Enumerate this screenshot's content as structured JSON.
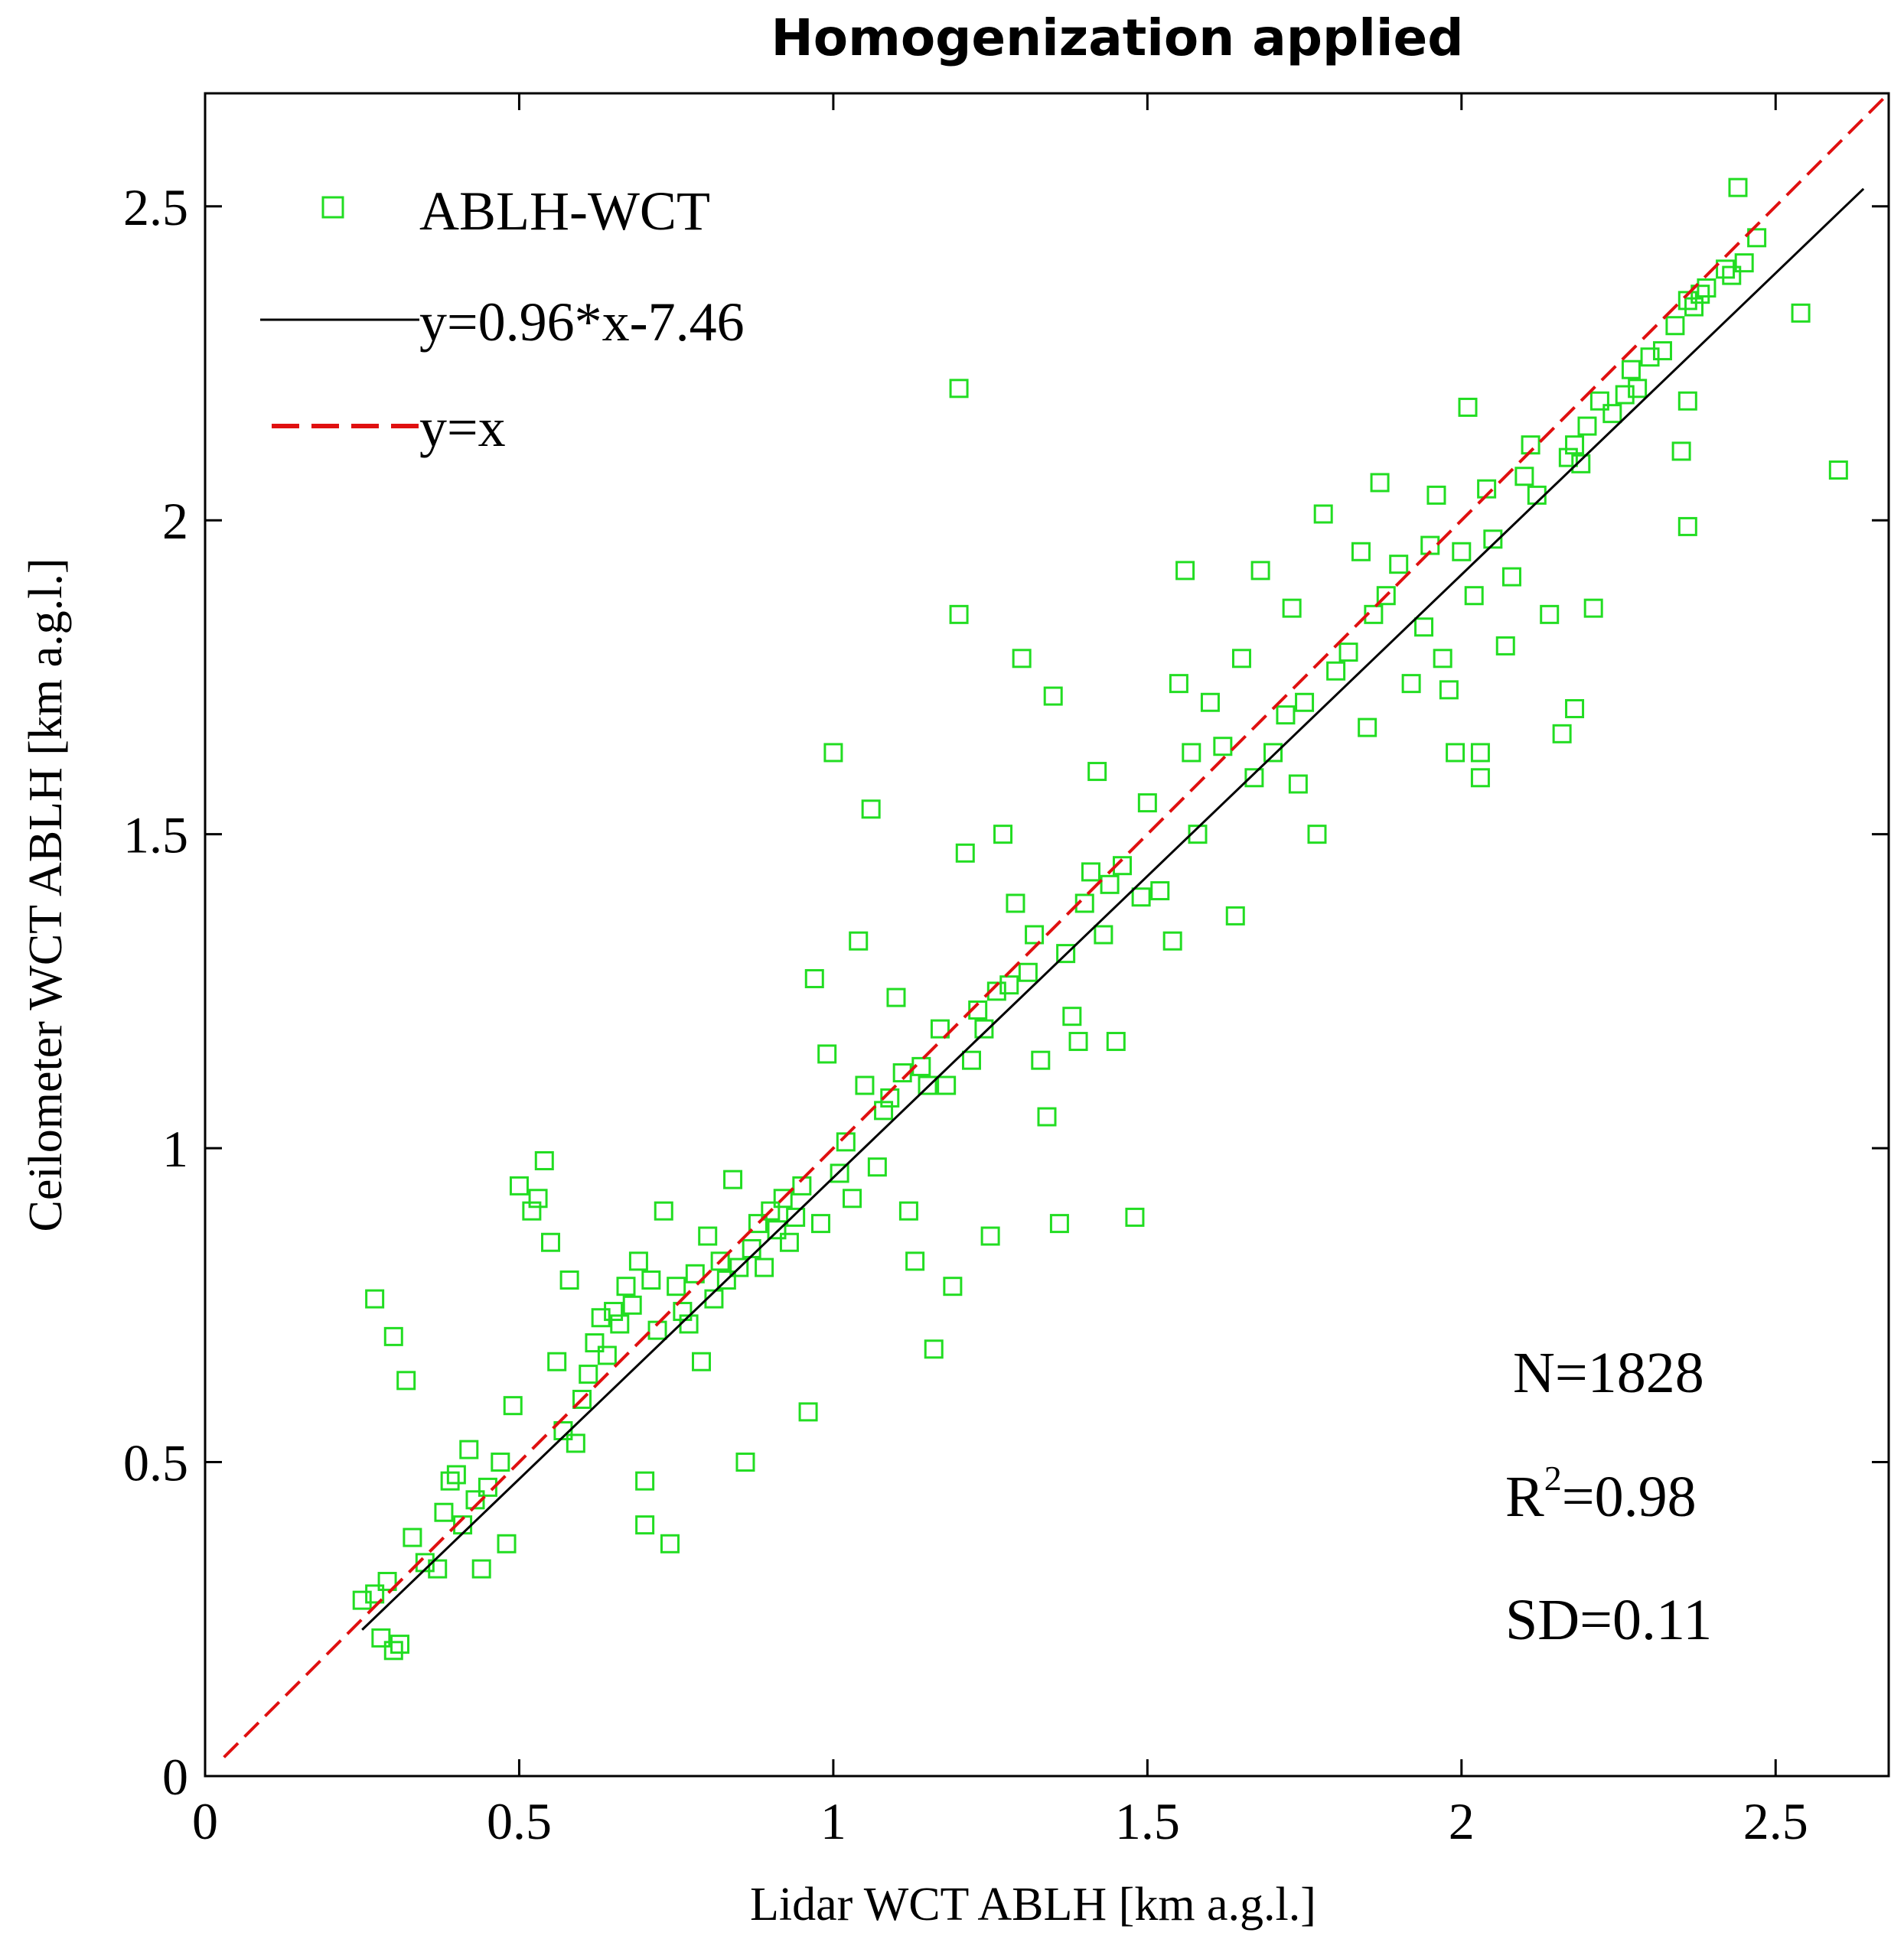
{
  "chart_data": {
    "type": "scatter",
    "title": "Homogenization applied",
    "xlabel": "Lidar WCT ABLH [km a.g.l.]",
    "ylabel": "Ceilometer WCT ABLH [km a.g.l.]",
    "xlim": [
      0,
      2.68
    ],
    "ylim": [
      0,
      2.68
    ],
    "xticks": [
      {
        "value": 0,
        "label": "0"
      },
      {
        "value": 0.5,
        "label": "0.5"
      },
      {
        "value": 1,
        "label": "1"
      },
      {
        "value": 1.5,
        "label": "1.5"
      },
      {
        "value": 2,
        "label": "2"
      },
      {
        "value": 2.5,
        "label": "2.5"
      }
    ],
    "yticks": [
      {
        "value": 0,
        "label": "0"
      },
      {
        "value": 0.5,
        "label": "0.5"
      },
      {
        "value": 1,
        "label": "1"
      },
      {
        "value": 1.5,
        "label": "1.5"
      },
      {
        "value": 2,
        "label": "2"
      },
      {
        "value": 2.5,
        "label": "2.5"
      }
    ],
    "legend_position": "top-left",
    "legend": [
      {
        "label": "ABLH-WCT",
        "kind": "marker"
      },
      {
        "label": "y=0.96*x-7.46",
        "kind": "line"
      },
      {
        "label": "y=x",
        "kind": "dashed"
      }
    ],
    "series": [
      {
        "name": "ABLH-WCT",
        "kind": "scatter",
        "marker": "open-square",
        "color": "#22dd22",
        "points": [
          [
            0.25,
            0.28
          ],
          [
            0.27,
            0.29
          ],
          [
            0.29,
            0.31
          ],
          [
            0.3,
            0.2
          ],
          [
            0.31,
            0.21
          ],
          [
            0.28,
            0.22
          ],
          [
            0.27,
            0.76
          ],
          [
            0.3,
            0.7
          ],
          [
            0.32,
            0.63
          ],
          [
            0.33,
            0.38
          ],
          [
            0.35,
            0.34
          ],
          [
            0.37,
            0.33
          ],
          [
            0.38,
            0.42
          ],
          [
            0.39,
            0.47
          ],
          [
            0.4,
            0.48
          ],
          [
            0.41,
            0.4
          ],
          [
            0.42,
            0.52
          ],
          [
            0.43,
            0.44
          ],
          [
            0.44,
            0.33
          ],
          [
            0.45,
            0.46
          ],
          [
            0.47,
            0.5
          ],
          [
            0.48,
            0.37
          ],
          [
            0.49,
            0.59
          ],
          [
            0.5,
            0.94
          ],
          [
            0.52,
            0.9
          ],
          [
            0.53,
            0.92
          ],
          [
            0.54,
            0.98
          ],
          [
            0.55,
            0.85
          ],
          [
            0.56,
            0.66
          ],
          [
            0.57,
            0.55
          ],
          [
            0.58,
            0.79
          ],
          [
            0.59,
            0.53
          ],
          [
            0.6,
            0.6
          ],
          [
            0.61,
            0.64
          ],
          [
            0.62,
            0.69
          ],
          [
            0.63,
            0.73
          ],
          [
            0.64,
            0.67
          ],
          [
            0.65,
            0.74
          ],
          [
            0.66,
            0.72
          ],
          [
            0.67,
            0.78
          ],
          [
            0.68,
            0.75
          ],
          [
            0.69,
            0.82
          ],
          [
            0.7,
            0.4
          ],
          [
            0.7,
            0.47
          ],
          [
            0.71,
            0.79
          ],
          [
            0.72,
            0.71
          ],
          [
            0.73,
            0.9
          ],
          [
            0.74,
            0.37
          ],
          [
            0.75,
            0.78
          ],
          [
            0.76,
            0.74
          ],
          [
            0.77,
            0.72
          ],
          [
            0.78,
            0.8
          ],
          [
            0.79,
            0.66
          ],
          [
            0.8,
            0.86
          ],
          [
            0.81,
            0.76
          ],
          [
            0.82,
            0.82
          ],
          [
            0.83,
            0.79
          ],
          [
            0.84,
            0.95
          ],
          [
            0.85,
            0.81
          ],
          [
            0.86,
            0.5
          ],
          [
            0.87,
            0.84
          ],
          [
            0.88,
            0.88
          ],
          [
            0.89,
            0.81
          ],
          [
            0.9,
            0.9
          ],
          [
            0.91,
            0.87
          ],
          [
            0.92,
            0.92
          ],
          [
            0.93,
            0.85
          ],
          [
            0.94,
            0.89
          ],
          [
            0.95,
            0.94
          ],
          [
            0.96,
            0.58
          ],
          [
            0.97,
            1.27
          ],
          [
            0.98,
            0.88
          ],
          [
            0.99,
            1.15
          ],
          [
            1.0,
            1.63
          ],
          [
            1.01,
            0.96
          ],
          [
            1.02,
            1.01
          ],
          [
            1.03,
            0.92
          ],
          [
            1.04,
            1.33
          ],
          [
            1.05,
            1.1
          ],
          [
            1.06,
            1.54
          ],
          [
            1.07,
            0.97
          ],
          [
            1.08,
            1.06
          ],
          [
            1.09,
            1.08
          ],
          [
            1.1,
            1.24
          ],
          [
            1.11,
            1.12
          ],
          [
            1.12,
            0.9
          ],
          [
            1.13,
            0.82
          ],
          [
            1.14,
            1.13
          ],
          [
            1.15,
            1.1
          ],
          [
            1.16,
            0.68
          ],
          [
            1.17,
            1.19
          ],
          [
            1.18,
            1.1
          ],
          [
            1.19,
            0.78
          ],
          [
            1.2,
            2.21
          ],
          [
            1.2,
            1.85
          ],
          [
            1.21,
            1.47
          ],
          [
            1.22,
            1.14
          ],
          [
            1.23,
            1.22
          ],
          [
            1.24,
            1.19
          ],
          [
            1.25,
            0.86
          ],
          [
            1.26,
            1.25
          ],
          [
            1.27,
            1.5
          ],
          [
            1.28,
            1.26
          ],
          [
            1.29,
            1.39
          ],
          [
            1.3,
            1.78
          ],
          [
            1.31,
            1.28
          ],
          [
            1.32,
            1.34
          ],
          [
            1.33,
            1.14
          ],
          [
            1.34,
            1.05
          ],
          [
            1.35,
            1.72
          ],
          [
            1.36,
            0.88
          ],
          [
            1.37,
            1.31
          ],
          [
            1.38,
            1.21
          ],
          [
            1.39,
            1.17
          ],
          [
            1.4,
            1.39
          ],
          [
            1.41,
            1.44
          ],
          [
            1.42,
            1.6
          ],
          [
            1.43,
            1.34
          ],
          [
            1.44,
            1.42
          ],
          [
            1.45,
            1.17
          ],
          [
            1.46,
            1.45
          ],
          [
            1.48,
            0.89
          ],
          [
            1.49,
            1.4
          ],
          [
            1.5,
            1.55
          ],
          [
            1.52,
            1.41
          ],
          [
            1.54,
            1.33
          ],
          [
            1.55,
            1.74
          ],
          [
            1.56,
            1.92
          ],
          [
            1.57,
            1.63
          ],
          [
            1.58,
            1.5
          ],
          [
            1.6,
            1.71
          ],
          [
            1.62,
            1.64
          ],
          [
            1.64,
            1.37
          ],
          [
            1.65,
            1.78
          ],
          [
            1.67,
            1.59
          ],
          [
            1.68,
            1.92
          ],
          [
            1.7,
            1.63
          ],
          [
            1.72,
            1.69
          ],
          [
            1.73,
            1.86
          ],
          [
            1.74,
            1.58
          ],
          [
            1.75,
            1.71
          ],
          [
            1.77,
            1.5
          ],
          [
            1.78,
            2.01
          ],
          [
            1.8,
            1.76
          ],
          [
            1.82,
            1.79
          ],
          [
            1.84,
            1.95
          ],
          [
            1.85,
            1.67
          ],
          [
            1.86,
            1.85
          ],
          [
            1.87,
            2.06
          ],
          [
            1.88,
            1.88
          ],
          [
            1.9,
            1.93
          ],
          [
            1.92,
            1.74
          ],
          [
            1.94,
            1.83
          ],
          [
            1.95,
            1.96
          ],
          [
            1.96,
            2.04
          ],
          [
            1.97,
            1.78
          ],
          [
            1.98,
            1.73
          ],
          [
            1.99,
            1.63
          ],
          [
            2.0,
            1.95
          ],
          [
            2.01,
            2.18
          ],
          [
            2.02,
            1.88
          ],
          [
            2.03,
            1.59
          ],
          [
            2.04,
            2.05
          ],
          [
            2.05,
            1.97
          ],
          [
            2.07,
            1.8
          ],
          [
            2.08,
            1.91
          ],
          [
            2.1,
            2.07
          ],
          [
            2.11,
            2.12
          ],
          [
            2.12,
            2.04
          ],
          [
            2.14,
            1.85
          ],
          [
            2.16,
            1.66
          ],
          [
            2.17,
            2.1
          ],
          [
            2.18,
            2.12
          ],
          [
            2.19,
            2.09
          ],
          [
            2.2,
            2.15
          ],
          [
            2.21,
            1.86
          ],
          [
            2.22,
            2.19
          ],
          [
            2.24,
            2.17
          ],
          [
            2.26,
            2.2
          ],
          [
            2.27,
            2.24
          ],
          [
            2.28,
            2.21
          ],
          [
            2.3,
            2.26
          ],
          [
            2.32,
            2.27
          ],
          [
            2.34,
            2.31
          ],
          [
            2.36,
            2.35
          ],
          [
            2.37,
            2.34
          ],
          [
            2.38,
            2.36
          ],
          [
            2.39,
            2.37
          ],
          [
            2.42,
            2.4
          ],
          [
            2.43,
            2.39
          ],
          [
            2.44,
            2.53
          ],
          [
            2.45,
            2.41
          ],
          [
            2.47,
            2.45
          ],
          [
            2.54,
            2.33
          ],
          [
            2.6,
            2.08
          ],
          [
            2.35,
            2.11
          ],
          [
            2.36,
            2.19
          ],
          [
            2.36,
            1.99
          ],
          [
            2.18,
            1.7
          ],
          [
            2.03,
            1.63
          ]
        ]
      },
      {
        "name": "y=0.96*x-7.46",
        "kind": "line",
        "color": "#000000",
        "x": [
          0.25,
          2.64
        ],
        "y": [
          0.233,
          2.528
        ]
      },
      {
        "name": "y=x",
        "kind": "dashed",
        "color": "#e01010",
        "x": [
          0.03,
          2.68
        ],
        "y": [
          0.03,
          2.68
        ]
      }
    ],
    "annotations": {
      "n": "N=1828",
      "r2_prefix": "R",
      "r2_sup": "2",
      "r2_value": "=0.98",
      "sd": "SD=0.11"
    }
  }
}
